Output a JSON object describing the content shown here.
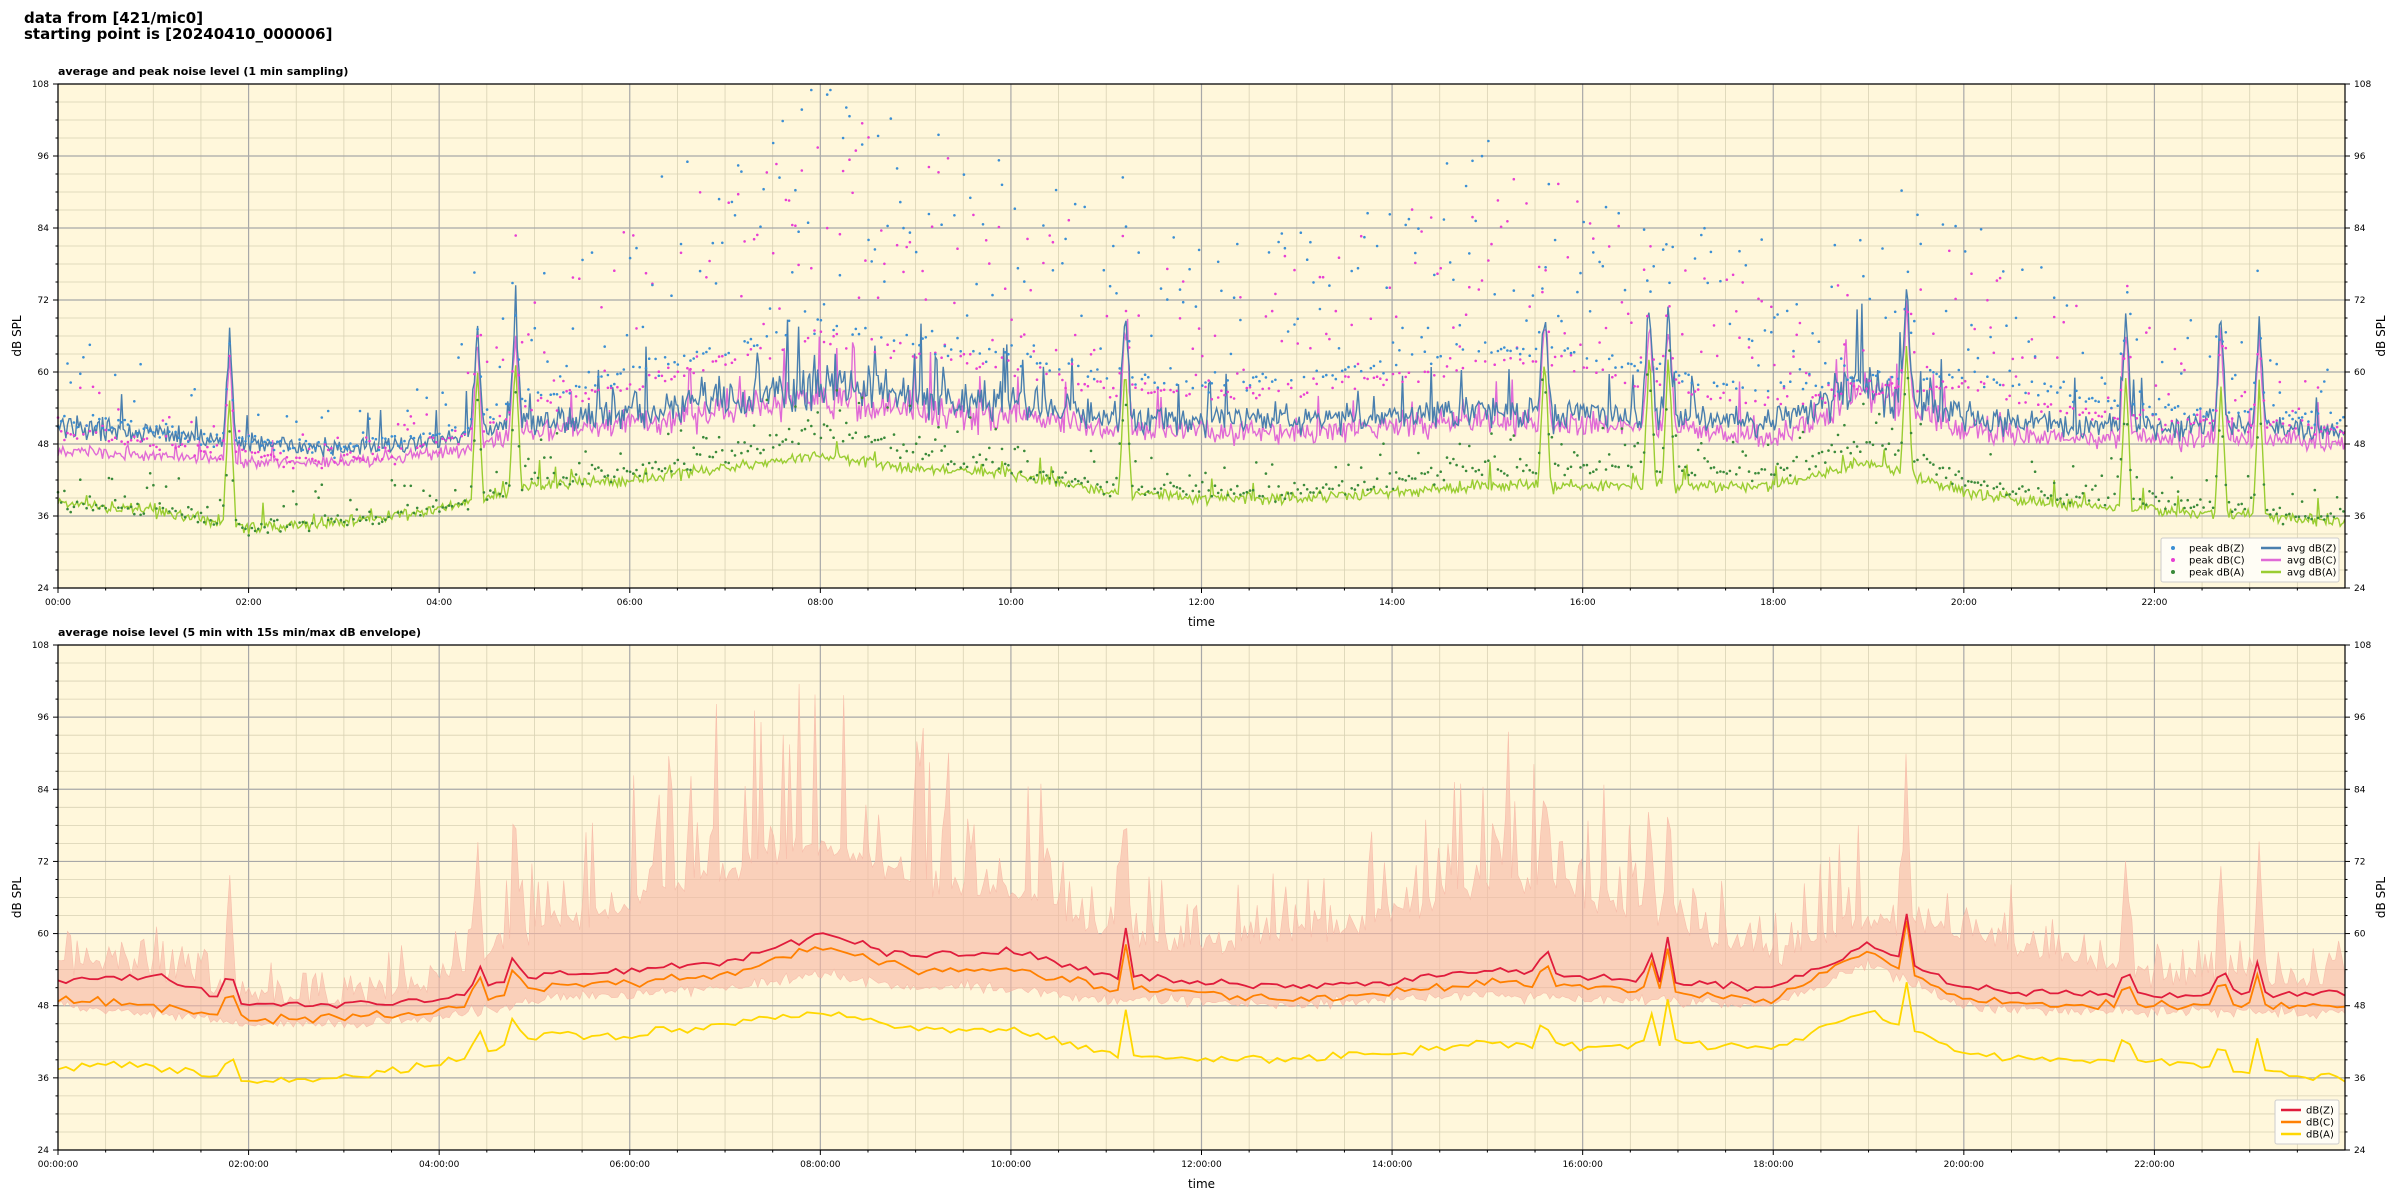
{
  "header": {
    "line1": "data from [421/mic0]",
    "line2": "starting point is [20240410_000006]"
  },
  "colors": {
    "plot_bg": "#fff7db",
    "grid_major": "#a8a8a8",
    "grid_minor": "#d9d2b4",
    "peak_z": "#3b8fd4",
    "peak_c": "#e83fd3",
    "peak_a": "#3a8a3a",
    "avg_z": "#4a7fae",
    "avg_c": "#e06ad6",
    "avg_a": "#9acd32",
    "env_z": "#e01c3c",
    "env_c": "#ff8000",
    "env_a": "#ffd700",
    "envelope_fill": "#f6b5a4"
  },
  "chart_data": [
    {
      "type": "line",
      "title": "average and peak noise level (1 min sampling)",
      "xlabel": "time",
      "ylabel": "dB SPL",
      "ylabel_right": "dB SPL",
      "xlim_hours": [
        0,
        24
      ],
      "ylim": [
        24,
        108
      ],
      "yticks": [
        24,
        36,
        48,
        60,
        72,
        84,
        96,
        108
      ],
      "xtick_hours": [
        0,
        2,
        4,
        6,
        8,
        10,
        12,
        14,
        16,
        18,
        20,
        22
      ],
      "xtick_labels": [
        "00:00",
        "02:00",
        "04:00",
        "06:00",
        "08:00",
        "10:00",
        "12:00",
        "14:00",
        "16:00",
        "18:00",
        "20:00",
        "22:00"
      ],
      "grid": true,
      "legend_position": "bottom-right",
      "series": [
        {
          "name": "peak dB(Z)",
          "kind": "scatter",
          "x_hours": [
            0,
            1,
            2,
            3,
            4,
            5,
            6,
            7,
            8,
            9,
            10,
            11,
            12,
            13,
            14,
            15,
            16,
            17,
            18,
            19,
            20,
            21,
            22,
            23,
            24
          ],
          "values": [
            55,
            53,
            51,
            50,
            53,
            59,
            63,
            67,
            71,
            68,
            66,
            62,
            61,
            62,
            64,
            67,
            66,
            62,
            60,
            62,
            63,
            59,
            57,
            56,
            55
          ]
        },
        {
          "name": "peak dB(C)",
          "kind": "scatter",
          "x_hours": [
            0,
            1,
            2,
            3,
            4,
            5,
            6,
            7,
            8,
            9,
            10,
            11,
            12,
            13,
            14,
            15,
            16,
            17,
            18,
            19,
            20,
            21,
            22,
            23,
            24
          ],
          "values": [
            53,
            51,
            49,
            48,
            51,
            57,
            61,
            65,
            69,
            66,
            64,
            60,
            59,
            60,
            62,
            65,
            64,
            60,
            58,
            60,
            61,
            57,
            55,
            54,
            53
          ]
        },
        {
          "name": "peak dB(A)",
          "kind": "scatter",
          "x_hours": [
            0,
            1,
            2,
            3,
            4,
            5,
            6,
            7,
            8,
            9,
            10,
            11,
            12,
            13,
            14,
            15,
            16,
            17,
            18,
            19,
            20,
            21,
            22,
            23,
            24
          ],
          "values": [
            41,
            40,
            37,
            38,
            40,
            45,
            46,
            49,
            53,
            50,
            47,
            44,
            43,
            43,
            45,
            47,
            47,
            47,
            46,
            51,
            45,
            42,
            42,
            40,
            39
          ]
        },
        {
          "name": "avg dB(Z)",
          "kind": "line",
          "x_hours": [
            0,
            1,
            2,
            3,
            4,
            5,
            6,
            7,
            8,
            9,
            10,
            11,
            12,
            13,
            14,
            15,
            16,
            17,
            18,
            19,
            20,
            21,
            22,
            23,
            24
          ],
          "values": [
            51,
            50,
            48,
            47.5,
            48.5,
            52,
            53.5,
            55.5,
            57.5,
            55.5,
            54.5,
            52.5,
            52,
            52,
            52.5,
            54,
            53,
            52.5,
            51,
            58,
            52.5,
            51,
            51,
            51,
            50
          ]
        },
        {
          "name": "avg dB(C)",
          "kind": "line",
          "x_hours": [
            0,
            1,
            2,
            3,
            4,
            5,
            6,
            7,
            8,
            9,
            10,
            11,
            12,
            13,
            14,
            15,
            16,
            17,
            18,
            19,
            20,
            21,
            22,
            23,
            24
          ],
          "values": [
            47,
            46,
            45,
            45,
            46.5,
            50,
            51.5,
            53.5,
            55.5,
            53.5,
            52.5,
            50.5,
            50,
            50,
            50.5,
            52,
            51,
            50.5,
            49,
            57,
            50.5,
            49,
            49,
            48.5,
            48
          ]
        },
        {
          "name": "avg dB(A)",
          "kind": "line",
          "x_hours": [
            0,
            1,
            2,
            3,
            4,
            5,
            6,
            7,
            8,
            9,
            10,
            11,
            12,
            13,
            14,
            15,
            16,
            17,
            18,
            19,
            20,
            21,
            22,
            23,
            24
          ],
          "values": [
            38,
            37,
            34,
            35,
            37,
            41,
            42,
            44,
            46,
            44,
            43,
            40,
            39,
            39,
            40,
            41,
            41,
            41,
            41,
            45,
            40,
            38,
            37,
            36,
            35
          ]
        }
      ],
      "spikes_hours": [
        1.8,
        4.4,
        4.8,
        11.2,
        15.6,
        16.7,
        16.9,
        19.4,
        21.7,
        22.7,
        23.1
      ]
    },
    {
      "type": "line",
      "title": "average noise level (5 min with 15s min/max dB envelope)",
      "xlabel": "time",
      "ylabel": "dB SPL",
      "ylabel_right": "dB SPL",
      "xlim_hours": [
        0,
        24
      ],
      "ylim": [
        24,
        108
      ],
      "yticks": [
        24,
        36,
        48,
        60,
        72,
        84,
        96,
        108
      ],
      "xtick_hours": [
        0,
        2,
        4,
        6,
        8,
        10,
        12,
        14,
        16,
        18,
        20,
        22
      ],
      "xtick_labels": [
        "00:00:00",
        "02:00:00",
        "04:00:00",
        "06:00:00",
        "08:00:00",
        "10:00:00",
        "12:00:00",
        "14:00:00",
        "16:00:00",
        "18:00:00",
        "20:00:00",
        "22:00:00"
      ],
      "grid": true,
      "legend_position": "bottom-right",
      "series": [
        {
          "name": "dB(Z)",
          "kind": "line",
          "x_hours": [
            0,
            1,
            2,
            3,
            4,
            5,
            6,
            7,
            8,
            9,
            10,
            11,
            12,
            13,
            14,
            15,
            16,
            17,
            18,
            19,
            20,
            21,
            22,
            23,
            24
          ],
          "values": [
            52,
            53,
            48,
            48,
            49,
            53,
            54,
            55,
            60,
            56,
            57,
            53,
            52,
            51,
            52,
            54,
            53,
            52,
            51,
            58,
            51,
            50,
            50,
            50,
            50
          ]
        },
        {
          "name": "dB(C)",
          "kind": "line",
          "x_hours": [
            0,
            1,
            2,
            3,
            4,
            5,
            6,
            7,
            8,
            9,
            10,
            11,
            12,
            13,
            14,
            15,
            16,
            17,
            18,
            19,
            20,
            21,
            22,
            23,
            24
          ],
          "values": [
            49,
            48,
            46,
            46,
            47,
            51,
            52,
            53,
            58,
            54,
            54,
            51,
            50,
            49,
            50,
            52,
            51,
            50,
            49,
            57,
            49,
            48,
            48,
            48,
            48
          ]
        },
        {
          "name": "dB(A)",
          "kind": "line",
          "x_hours": [
            0,
            1,
            2,
            3,
            4,
            5,
            6,
            7,
            8,
            9,
            10,
            11,
            12,
            13,
            14,
            15,
            16,
            17,
            18,
            19,
            20,
            21,
            22,
            23,
            24
          ],
          "values": [
            38,
            38,
            35,
            36,
            38,
            43,
            43,
            45,
            47,
            44,
            44,
            40,
            39,
            39,
            40,
            42,
            41,
            42,
            41,
            47,
            40,
            39,
            39,
            37,
            36
          ]
        }
      ],
      "envelope_max": {
        "x_hours": [
          0,
          1,
          2,
          3,
          4,
          5,
          6,
          7,
          8,
          9,
          10,
          11,
          12,
          13,
          14,
          15,
          16,
          17,
          18,
          19,
          20,
          21,
          22,
          23,
          24
        ],
        "values": [
          58,
          57,
          53,
          52,
          56,
          64,
          68,
          74,
          78,
          72,
          70,
          63,
          61,
          62,
          66,
          72,
          70,
          64,
          60,
          66,
          64,
          58,
          57,
          56,
          55
        ]
      },
      "envelope_min": {
        "x_hours": [
          0,
          1,
          2,
          3,
          4,
          5,
          6,
          7,
          8,
          9,
          10,
          11,
          12,
          13,
          14,
          15,
          16,
          17,
          18,
          19,
          20,
          21,
          22,
          23,
          24
        ],
        "values": [
          48,
          47,
          45,
          45,
          46,
          49,
          50,
          51,
          53,
          51,
          51,
          49,
          49,
          48,
          49,
          50,
          49,
          49,
          48,
          55,
          48,
          47,
          47,
          47,
          47
        ]
      },
      "spikes_hours": [
        1.8,
        4.4,
        4.8,
        11.2,
        15.6,
        16.7,
        16.9,
        19.4,
        21.7,
        22.7,
        23.1
      ]
    }
  ]
}
